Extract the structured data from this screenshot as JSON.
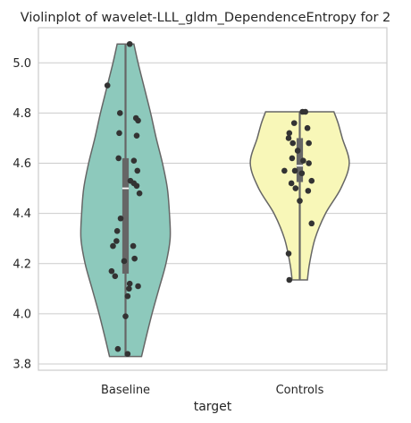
{
  "chart_data": {
    "type": "violin",
    "title": "Violinplot of wavelet-LLL_gldm_DependenceEntropy for 2",
    "xlabel": "target",
    "ylabel": "",
    "categories": [
      "Baseline",
      "Controls"
    ],
    "ylim": [
      3.775,
      5.14
    ],
    "yticks": [
      3.8,
      4.0,
      4.2,
      4.4,
      4.6,
      4.8,
      5.0
    ],
    "ytick_labels": [
      "3.8",
      "4.0",
      "4.2",
      "4.4",
      "4.6",
      "4.8",
      "5.0"
    ],
    "grid": true,
    "colors": {
      "Baseline": "#8dc9bc",
      "Controls": "#f8f7b8",
      "outline": "#666666",
      "points": "#333333",
      "grid": "#cccccc"
    },
    "violins": [
      {
        "name": "Baseline",
        "range": [
          3.83,
          5.075
        ],
        "quartiles": [
          4.16,
          4.5,
          4.62
        ],
        "median": 4.5,
        "density": [
          {
            "y": 3.83,
            "w": 0.23
          },
          {
            "y": 3.9,
            "w": 0.29
          },
          {
            "y": 4.0,
            "w": 0.38
          },
          {
            "y": 4.1,
            "w": 0.48
          },
          {
            "y": 4.2,
            "w": 0.58
          },
          {
            "y": 4.3,
            "w": 0.64
          },
          {
            "y": 4.4,
            "w": 0.63
          },
          {
            "y": 4.5,
            "w": 0.6
          },
          {
            "y": 4.6,
            "w": 0.53
          },
          {
            "y": 4.7,
            "w": 0.44
          },
          {
            "y": 4.8,
            "w": 0.36
          },
          {
            "y": 4.9,
            "w": 0.27
          },
          {
            "y": 5.0,
            "w": 0.18
          },
          {
            "y": 5.075,
            "w": 0.12
          }
        ],
        "points": [
          [
            -0.26,
            4.91
          ],
          [
            -0.08,
            4.8
          ],
          [
            0.15,
            4.78
          ],
          [
            0.18,
            4.77
          ],
          [
            -0.09,
            4.72
          ],
          [
            0.16,
            4.71
          ],
          [
            -0.1,
            4.62
          ],
          [
            0.12,
            4.61
          ],
          [
            0.17,
            4.57
          ],
          [
            0.07,
            4.53
          ],
          [
            0.12,
            4.52
          ],
          [
            0.16,
            4.51
          ],
          [
            0.2,
            4.48
          ],
          [
            -0.07,
            4.38
          ],
          [
            -0.12,
            4.33
          ],
          [
            -0.13,
            4.29
          ],
          [
            -0.18,
            4.27
          ],
          [
            0.11,
            4.27
          ],
          [
            0.13,
            4.22
          ],
          [
            -0.02,
            4.21
          ],
          [
            -0.2,
            4.17
          ],
          [
            -0.15,
            4.15
          ],
          [
            0.06,
            4.12
          ],
          [
            0.05,
            4.1
          ],
          [
            0.18,
            4.11
          ],
          [
            0.03,
            4.07
          ],
          [
            0.0,
            3.99
          ],
          [
            -0.11,
            3.86
          ],
          [
            0.03,
            3.84
          ],
          [
            0.06,
            5.075
          ]
        ]
      },
      {
        "name": "Controls",
        "range": [
          4.135,
          4.805
        ],
        "quartiles": [
          4.525,
          4.59,
          4.7
        ],
        "median": 4.59,
        "density": [
          {
            "y": 4.135,
            "w": 0.11
          },
          {
            "y": 4.2,
            "w": 0.14
          },
          {
            "y": 4.3,
            "w": 0.22
          },
          {
            "y": 4.4,
            "w": 0.37
          },
          {
            "y": 4.5,
            "w": 0.59
          },
          {
            "y": 4.6,
            "w": 0.71
          },
          {
            "y": 4.7,
            "w": 0.61
          },
          {
            "y": 4.76,
            "w": 0.55
          },
          {
            "y": 4.805,
            "w": 0.49
          }
        ],
        "points": [
          [
            0.04,
            4.805
          ],
          [
            0.08,
            4.805
          ],
          [
            -0.08,
            4.76
          ],
          [
            -0.15,
            4.72
          ],
          [
            0.11,
            4.74
          ],
          [
            -0.16,
            4.7
          ],
          [
            -0.1,
            4.68
          ],
          [
            0.13,
            4.68
          ],
          [
            -0.03,
            4.65
          ],
          [
            -0.11,
            4.62
          ],
          [
            0.05,
            4.61
          ],
          [
            0.13,
            4.6
          ],
          [
            -0.22,
            4.57
          ],
          [
            -0.07,
            4.57
          ],
          [
            0.03,
            4.56
          ],
          [
            0.17,
            4.53
          ],
          [
            -0.12,
            4.52
          ],
          [
            -0.06,
            4.5
          ],
          [
            0.12,
            4.49
          ],
          [
            0.0,
            4.45
          ],
          [
            0.17,
            4.36
          ],
          [
            -0.16,
            4.24
          ],
          [
            -0.15,
            4.135
          ]
        ]
      }
    ]
  }
}
